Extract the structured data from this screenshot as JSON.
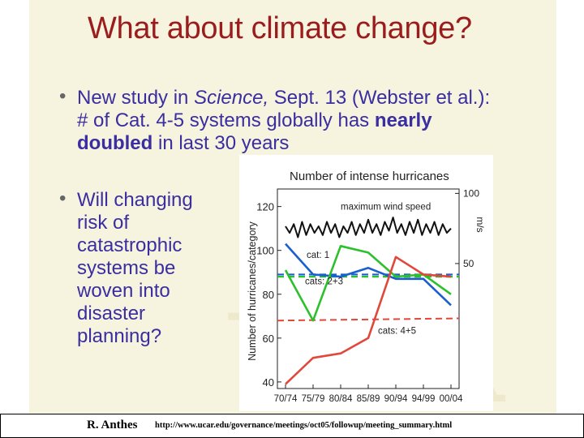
{
  "slide": {
    "title": "What about climate change?",
    "bullet1": {
      "line1_pre": "New study in ",
      "line1_em": "Science,",
      "line1_post": " Sept. 13 (Webster et al.):",
      "line2_pre": "# of Cat. 4-5 systems globally has ",
      "line2_strong": "nearly",
      "line3_strong": "doubled",
      "line3_post": " in last 30 years"
    },
    "bullet2": {
      "lines": [
        "Will changing",
        "risk of",
        "catastrophic",
        "systems be",
        "woven into",
        "disaster",
        "planning?"
      ]
    }
  },
  "footer": {
    "author": "R. Anthes",
    "url": "http://www.ucar.edu/governance/meetings/oct05/followup/meeting_summary.html"
  },
  "colors": {
    "title": "#9b1c1c",
    "bullet_text": "#3a2ea0",
    "slide_bg": "#f6f3df",
    "wind": "#111111",
    "cat1": "#1a5fd0",
    "cats23": "#2cc12c",
    "cats45": "#e0483a"
  },
  "chart_data": {
    "type": "line",
    "title": "Number of intense hurricanes",
    "ylabel": "Number of hurricanes/category",
    "y2label": "m/s",
    "categories": [
      "70/74",
      "75/79",
      "80/84",
      "85/89",
      "90/94",
      "94/99",
      "00/04"
    ],
    "ylim": [
      37,
      128
    ],
    "yticks": [
      40,
      60,
      80,
      100,
      120
    ],
    "y2ticks": [
      {
        "label": "100",
        "at_left_value": 126
      },
      {
        "label": "50",
        "at_left_value": 94
      }
    ],
    "series": [
      {
        "name": "maximum wind speed",
        "label_text": "maximum wind speed",
        "color_key": "wind",
        "x": [
          0,
          0.15,
          0.3,
          0.45,
          0.6,
          0.75,
          0.9,
          1.05,
          1.2,
          1.35,
          1.5,
          1.65,
          1.8,
          1.95,
          2.1,
          2.25,
          2.4,
          2.55,
          2.7,
          2.85,
          3.0,
          3.15,
          3.3,
          3.45,
          3.6,
          3.75,
          3.9,
          4.05,
          4.2,
          4.35,
          4.5,
          4.65,
          4.8,
          4.95,
          5.1,
          5.25,
          5.4,
          5.55,
          5.7,
          5.85,
          6.0
        ],
        "values": [
          111,
          108,
          112,
          106,
          113,
          107,
          112,
          108,
          111,
          107,
          113,
          108,
          112,
          106,
          111,
          108,
          113,
          107,
          112,
          108,
          114,
          108,
          112,
          107,
          113,
          109,
          115,
          108,
          112,
          107,
          113,
          108,
          114,
          107,
          112,
          108,
          113,
          107,
          112,
          108,
          110
        ]
      },
      {
        "name": "cat: 1",
        "label_text": "cat: 1",
        "color_key": "cat1",
        "values": [
          103,
          89,
          88,
          92,
          87,
          87,
          75
        ],
        "average": 89
      },
      {
        "name": "cats: 2+3",
        "label_text": "cats: 2+3",
        "color_key": "cats23",
        "values": [
          91,
          68,
          102,
          99,
          88,
          89,
          80
        ],
        "average": 88
      },
      {
        "name": "cats: 4+5",
        "label_text": "cats: 4+5",
        "color_key": "cats45",
        "values": [
          39,
          51,
          53,
          60,
          97,
          89,
          88
        ],
        "average_start": 68,
        "average_end": 69
      }
    ]
  }
}
